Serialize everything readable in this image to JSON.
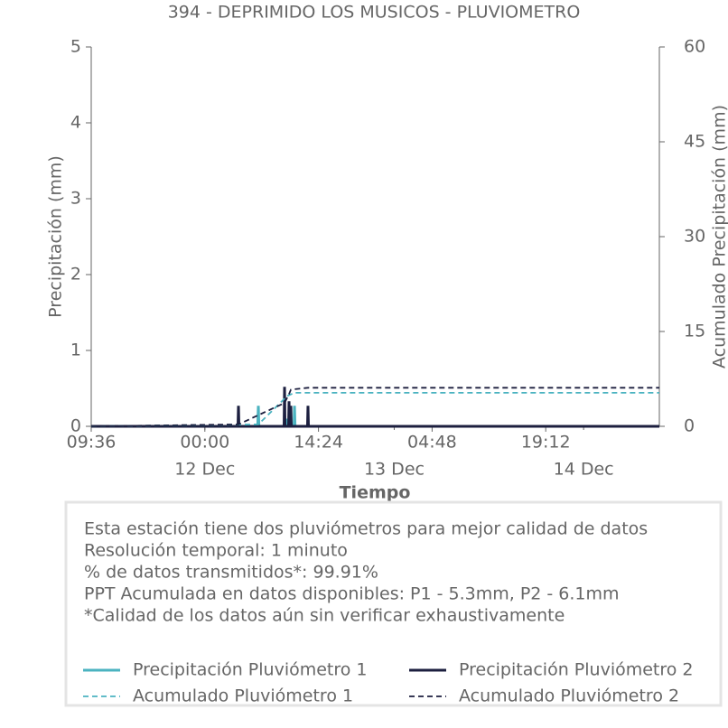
{
  "chart_data": {
    "type": "line",
    "title": "394 - DEPRIMIDO LOS MUSICOS - PLUVIOMETRO",
    "xlabel": "Tiempo",
    "ylabel": "Precipitación (mm)",
    "y2label": "Acumulado Precipitación (mm)",
    "xlim": [
      0,
      72
    ],
    "xticks": [
      {
        "value": 0,
        "label": "09:36"
      },
      {
        "value": 14.4,
        "label": "00:00"
      },
      {
        "value": 28.8,
        "label": "14:24"
      },
      {
        "value": 43.2,
        "label": "04:48"
      },
      {
        "value": 57.6,
        "label": "19:12"
      }
    ],
    "xticks_minor": [
      {
        "value": 14.4,
        "label": "12 Dec"
      },
      {
        "value": 38.4,
        "label": "13 Dec"
      },
      {
        "value": 62.4,
        "label": "14 Dec"
      }
    ],
    "ylim": [
      0,
      5
    ],
    "yticks": [
      0,
      1,
      2,
      3,
      4,
      5
    ],
    "y2lim": [
      0,
      60
    ],
    "y2ticks": [
      0,
      15,
      30,
      45,
      60
    ],
    "series": [
      {
        "name": "Precipitación Pluviómetro 1",
        "color": "#4bb3c0",
        "dashed": false,
        "x": [
          0,
          21.1,
          21.18,
          21.25,
          24.78,
          24.84,
          24.9,
          25.7,
          25.76,
          25.83,
          72
        ],
        "values": [
          0,
          0,
          0.27,
          0,
          0,
          0.1,
          0,
          0,
          0.27,
          0,
          0
        ]
      },
      {
        "name": "Precipitación Pluviómetro 2",
        "color": "#1c1f3f",
        "dashed": false,
        "x": [
          0,
          18.6,
          18.66,
          18.72,
          24.44,
          24.5,
          24.56,
          25.01,
          25.07,
          25.13,
          25.24,
          25.3,
          25.36,
          27.41,
          27.47,
          27.53,
          72
        ],
        "values": [
          0,
          0,
          0.27,
          0,
          0,
          0.52,
          0,
          0,
          0.33,
          0,
          0,
          0.27,
          0,
          0,
          0.27,
          0,
          0
        ]
      },
      {
        "name": "Acumulado Pluviómetro 1",
        "color": "#4bb3c0",
        "dashed": true,
        "axis": "y2",
        "x": [
          0,
          21.18,
          24.84,
          25.76,
          72
        ],
        "values": [
          0,
          0.3,
          4.8,
          5.3,
          5.3
        ]
      },
      {
        "name": "Acumulado Pluviómetro 2",
        "color": "#1c1f3f",
        "dashed": true,
        "axis": "y2",
        "x": [
          0,
          18.66,
          24.5,
          25.07,
          25.3,
          27.47,
          72
        ],
        "values": [
          0,
          0.3,
          3.7,
          5.1,
          5.8,
          6.1,
          6.1
        ]
      }
    ],
    "annotations": [
      "Esta estación tiene dos pluviómetros para mejor calidad de datos",
      "Resolución temporal: 1 minuto",
      "% de datos transmitidos*: 99.91%",
      "PPT Acumulada en datos disponibles: P1 - 5.3mm, P2 - 6.1mm",
      "*Calidad de los datos aún sin verificar exhaustivamente"
    ]
  }
}
